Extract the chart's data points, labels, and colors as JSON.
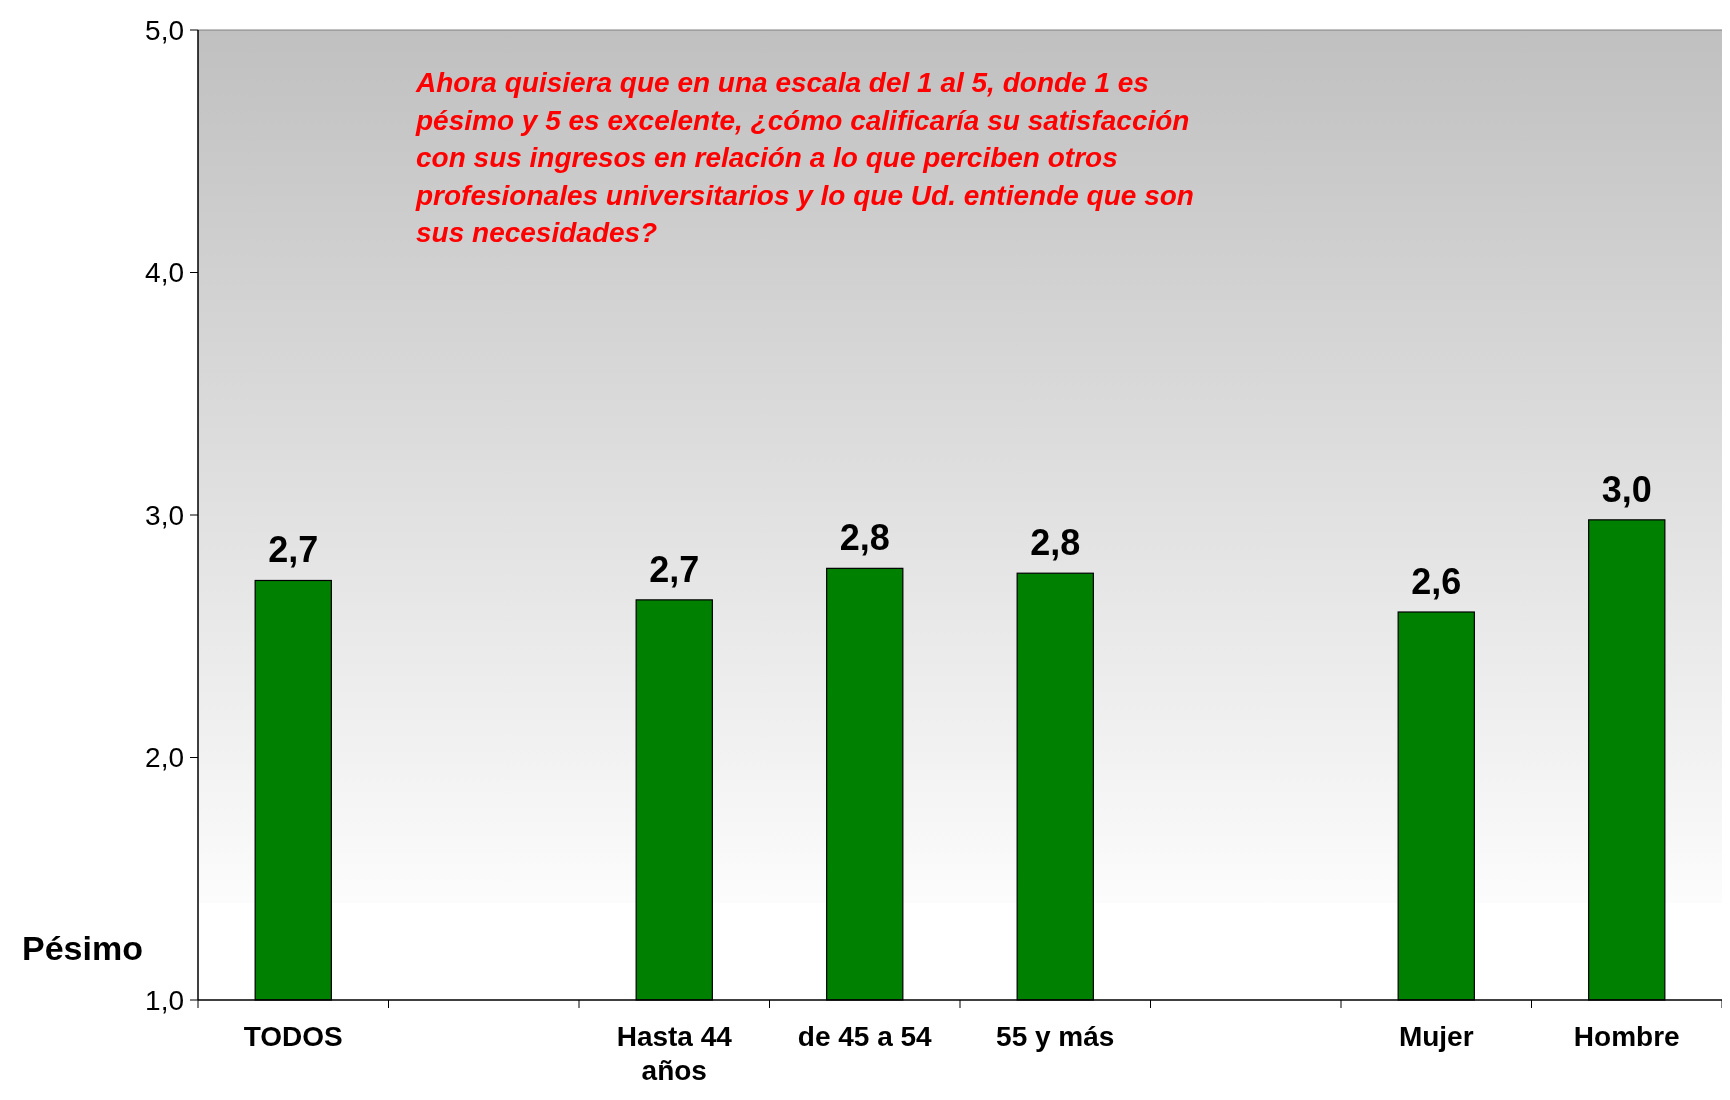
{
  "chart_data": {
    "type": "bar",
    "categories": [
      "TODOS",
      null,
      "Hasta 44 años",
      "de 45 a 54",
      "55 y más",
      null,
      "Mujer",
      "Hombre"
    ],
    "values": [
      2.73,
      null,
      2.65,
      2.78,
      2.76,
      null,
      2.6,
      2.98
    ],
    "value_labels": [
      "2,7",
      null,
      "2,7",
      "2,8",
      "2,8",
      null,
      "2,6",
      "3,0"
    ],
    "color": "#008000",
    "ylim": [
      1,
      5
    ],
    "yticks": [
      {
        "value": 1,
        "label": "1,0"
      },
      {
        "value": 2,
        "label": "2,0"
      },
      {
        "value": 3,
        "label": "3,0"
      },
      {
        "value": 4,
        "label": "4,0"
      },
      {
        "value": 5,
        "label": "5,0"
      }
    ],
    "grid": false,
    "annotations": [
      "Ahora quisiera que en una escala del 1 al 5, donde 1 es pésimo y 5 es excelente, ¿cómo calificaría su satisfacción con sus ingresos en relación a lo que perciben otros profesionales universitarios y lo que Ud. entiende que son sus necesidades?",
      "Pésimo"
    ]
  }
}
